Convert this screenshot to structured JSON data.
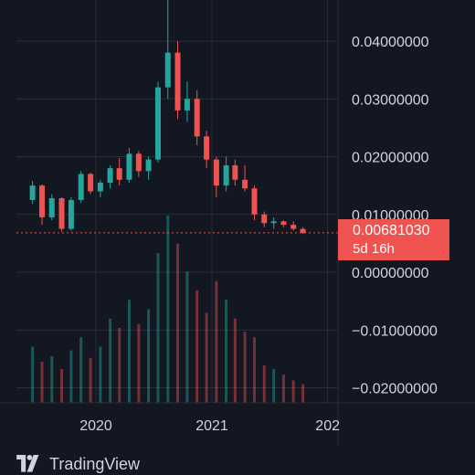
{
  "chart_data": {
    "type": "candlestick",
    "y_tick_labels": [
      "0.04000000",
      "0.03000000",
      "0.02000000",
      "0.01000000",
      "0.00000000",
      "−0.01000000",
      "−0.02000000"
    ],
    "y_ticks": [
      0.04,
      0.03,
      0.02,
      0.01,
      0.0,
      -0.01,
      -0.02
    ],
    "x_tick_labels": [
      "2020",
      "2021",
      "202"
    ],
    "x_ticks": [
      "2020-01-01",
      "2021-01-01",
      "2022-01-01"
    ],
    "price_ylim": [
      -0.026,
      0.048
    ],
    "last_price": 0.0068103,
    "last_price_label": "0.00681030",
    "countdown_label": "5d 16h",
    "grid": true,
    "candles_weekly": [
      {
        "t": "2019-06",
        "o": 0.0125,
        "h": 0.0158,
        "l": 0.0118,
        "c": 0.015
      },
      {
        "t": "2019-07",
        "o": 0.015,
        "h": 0.0152,
        "l": 0.0082,
        "c": 0.0095
      },
      {
        "t": "2019-08",
        "o": 0.0095,
        "h": 0.0135,
        "l": 0.009,
        "c": 0.0128
      },
      {
        "t": "2019-09",
        "o": 0.0128,
        "h": 0.013,
        "l": 0.007,
        "c": 0.0075
      },
      {
        "t": "2019-10",
        "o": 0.0075,
        "h": 0.013,
        "l": 0.0072,
        "c": 0.0125
      },
      {
        "t": "2019-11",
        "o": 0.0125,
        "h": 0.0175,
        "l": 0.012,
        "c": 0.017
      },
      {
        "t": "2019-12",
        "o": 0.017,
        "h": 0.0172,
        "l": 0.0135,
        "c": 0.014
      },
      {
        "t": "2020-01",
        "o": 0.014,
        "h": 0.016,
        "l": 0.013,
        "c": 0.0155
      },
      {
        "t": "2020-02",
        "o": 0.0155,
        "h": 0.0185,
        "l": 0.0145,
        "c": 0.018
      },
      {
        "t": "2020-03",
        "o": 0.018,
        "h": 0.0198,
        "l": 0.015,
        "c": 0.016
      },
      {
        "t": "2020-04",
        "o": 0.016,
        "h": 0.0215,
        "l": 0.0155,
        "c": 0.0205
      },
      {
        "t": "2020-05",
        "o": 0.0205,
        "h": 0.021,
        "l": 0.0165,
        "c": 0.0175
      },
      {
        "t": "2020-06",
        "o": 0.0175,
        "h": 0.02,
        "l": 0.016,
        "c": 0.0195
      },
      {
        "t": "2020-07",
        "o": 0.0195,
        "h": 0.033,
        "l": 0.019,
        "c": 0.032
      },
      {
        "t": "2020-08",
        "o": 0.032,
        "h": 0.048,
        "l": 0.03,
        "c": 0.038
      },
      {
        "t": "2020-09",
        "o": 0.038,
        "h": 0.04,
        "l": 0.0265,
        "c": 0.028
      },
      {
        "t": "2020-10",
        "o": 0.028,
        "h": 0.033,
        "l": 0.026,
        "c": 0.03
      },
      {
        "t": "2020-11",
        "o": 0.03,
        "h": 0.0315,
        "l": 0.022,
        "c": 0.0235
      },
      {
        "t": "2020-12",
        "o": 0.0235,
        "h": 0.0245,
        "l": 0.018,
        "c": 0.0195
      },
      {
        "t": "2021-01",
        "o": 0.0195,
        "h": 0.02,
        "l": 0.013,
        "c": 0.015
      },
      {
        "t": "2021-02",
        "o": 0.015,
        "h": 0.02,
        "l": 0.014,
        "c": 0.0185
      },
      {
        "t": "2021-03",
        "o": 0.0185,
        "h": 0.0195,
        "l": 0.015,
        "c": 0.016
      },
      {
        "t": "2021-04",
        "o": 0.016,
        "h": 0.0185,
        "l": 0.014,
        "c": 0.0145
      },
      {
        "t": "2021-05",
        "o": 0.0145,
        "h": 0.015,
        "l": 0.009,
        "c": 0.01
      },
      {
        "t": "2021-06",
        "o": 0.01,
        "h": 0.0105,
        "l": 0.0078,
        "c": 0.0085
      },
      {
        "t": "2021-07",
        "o": 0.0085,
        "h": 0.0095,
        "l": 0.0075,
        "c": 0.0088
      },
      {
        "t": "2021-08",
        "o": 0.0088,
        "h": 0.009,
        "l": 0.0078,
        "c": 0.0082
      },
      {
        "t": "2021-09",
        "o": 0.0082,
        "h": 0.0088,
        "l": 0.0072,
        "c": 0.0075
      },
      {
        "t": "2021-10",
        "o": 0.0075,
        "h": 0.0078,
        "l": 0.0066,
        "c": 0.0068
      }
    ],
    "volume_relative": [
      0.3,
      0.22,
      0.25,
      0.18,
      0.28,
      0.35,
      0.24,
      0.3,
      0.45,
      0.4,
      0.55,
      0.42,
      0.5,
      0.8,
      1.0,
      0.85,
      0.7,
      0.6,
      0.48,
      0.65,
      0.55,
      0.45,
      0.38,
      0.35,
      0.2,
      0.18,
      0.15,
      0.12,
      0.1
    ]
  },
  "colors": {
    "background": "#131722",
    "grid": "#2a2e39",
    "up": "#26a69a",
    "down": "#ef5350",
    "text": "#d1d4dc",
    "price_line": "#ef5350"
  },
  "brand": {
    "logo_icon": "tradingview-logo-icon",
    "name": "TradingView"
  }
}
